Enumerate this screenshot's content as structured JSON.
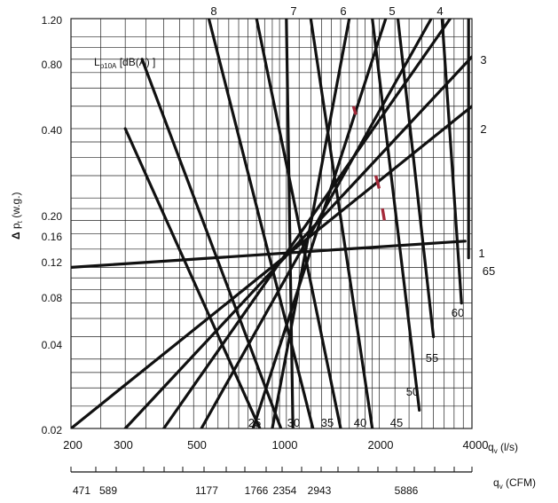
{
  "chart_data": {
    "type": "line",
    "title": "",
    "x_axis": {
      "scale": "log",
      "range": [
        200,
        4000
      ],
      "unit_label": "(l/s)",
      "tick_labels": [
        "200",
        "300",
        "500",
        "1000",
        "2000",
        "4000"
      ],
      "tick_values": [
        200,
        300,
        500,
        1000,
        2000,
        4000
      ]
    },
    "x2_axis": {
      "unit_label": "(CFM)",
      "tick_labels": [
        "471",
        "589",
        "1177",
        "1766",
        "2354",
        "2943",
        "5886"
      ],
      "tick_values_ls": [
        222,
        278,
        555,
        833,
        1111,
        1389,
        2778
      ]
    },
    "y_axis": {
      "scale": "log",
      "range": [
        0.02,
        1.2
      ],
      "unit_label": "(w.g.)",
      "tick_labels": [
        "1.20",
        "0.80",
        "0.40",
        "0.20",
        "0.16",
        "0.12",
        "0.08",
        "0.04",
        "0.02"
      ],
      "tick_values": [
        1.2,
        0.8,
        0.4,
        0.2,
        0.16,
        0.12,
        0.08,
        0.04,
        0.02
      ]
    },
    "inner_label": "[dB(A) ]",
    "grid": true,
    "damper_lines": [
      {
        "name": "1",
        "points": [
          [
            200,
            0.1
          ],
          [
            3800,
            0.13
          ]
        ]
      },
      {
        "name": "2",
        "points": [
          [
            200,
            0.02
          ],
          [
            4000,
            0.5
          ]
        ]
      },
      {
        "name": "3",
        "points": [
          [
            300,
            0.02
          ],
          [
            4000,
            0.82
          ]
        ]
      },
      {
        "name": "4",
        "points": [
          [
            400,
            0.02
          ],
          [
            3400,
            1.2
          ]
        ]
      },
      {
        "name": "5",
        "points": [
          [
            530,
            0.02
          ],
          [
            2950,
            1.2
          ]
        ]
      },
      {
        "name": "6",
        "points": [
          [
            780,
            0.02
          ],
          [
            2100,
            1.2
          ]
        ]
      },
      {
        "name": "7",
        "points": [
          [
            900,
            0.02
          ],
          [
            1600,
            1.2
          ]
        ]
      },
      {
        "name": "8",
        "points": [
          [
            1050,
            0.02
          ],
          [
            1000,
            1.2
          ]
        ]
      }
    ],
    "sound_lines": [
      {
        "name": "25",
        "points": [
          [
            300,
            0.4
          ],
          [
            820,
            0.02
          ]
        ]
      },
      {
        "name": "30",
        "points": [
          [
            340,
            0.8
          ],
          [
            960,
            0.02
          ]
        ]
      },
      {
        "name": "35",
        "points": [
          [
            560,
            1.2
          ],
          [
            1220,
            0.02
          ]
        ]
      },
      {
        "name": "40",
        "points": [
          [
            800,
            1.2
          ],
          [
            1500,
            0.02
          ]
        ]
      },
      {
        "name": "45",
        "points": [
          [
            1200,
            1.2
          ],
          [
            1900,
            0.02
          ]
        ]
      },
      {
        "name": "50",
        "points": [
          [
            1900,
            1.2
          ],
          [
            2700,
            0.024
          ]
        ]
      },
      {
        "name": "55",
        "points": [
          [
            2300,
            1.2
          ],
          [
            3000,
            0.05
          ]
        ]
      },
      {
        "name": "60",
        "points": [
          [
            3200,
            1.2
          ],
          [
            3700,
            0.07
          ]
        ]
      },
      {
        "name": "65",
        "points": [
          [
            3900,
            1.2
          ],
          [
            3900,
            0.11
          ]
        ]
      }
    ],
    "highlight_segments": [
      {
        "points": [
          [
            1650,
            0.5
          ],
          [
            1680,
            0.46
          ]
        ]
      },
      {
        "points": [
          [
            1950,
            0.25
          ],
          [
            2000,
            0.22
          ]
        ]
      },
      {
        "points": [
          [
            2050,
            0.18
          ],
          [
            2080,
            0.16
          ]
        ]
      }
    ],
    "colors": {
      "curve": "#111111",
      "grid": "#222222",
      "highlight": "#a52a3a"
    }
  }
}
